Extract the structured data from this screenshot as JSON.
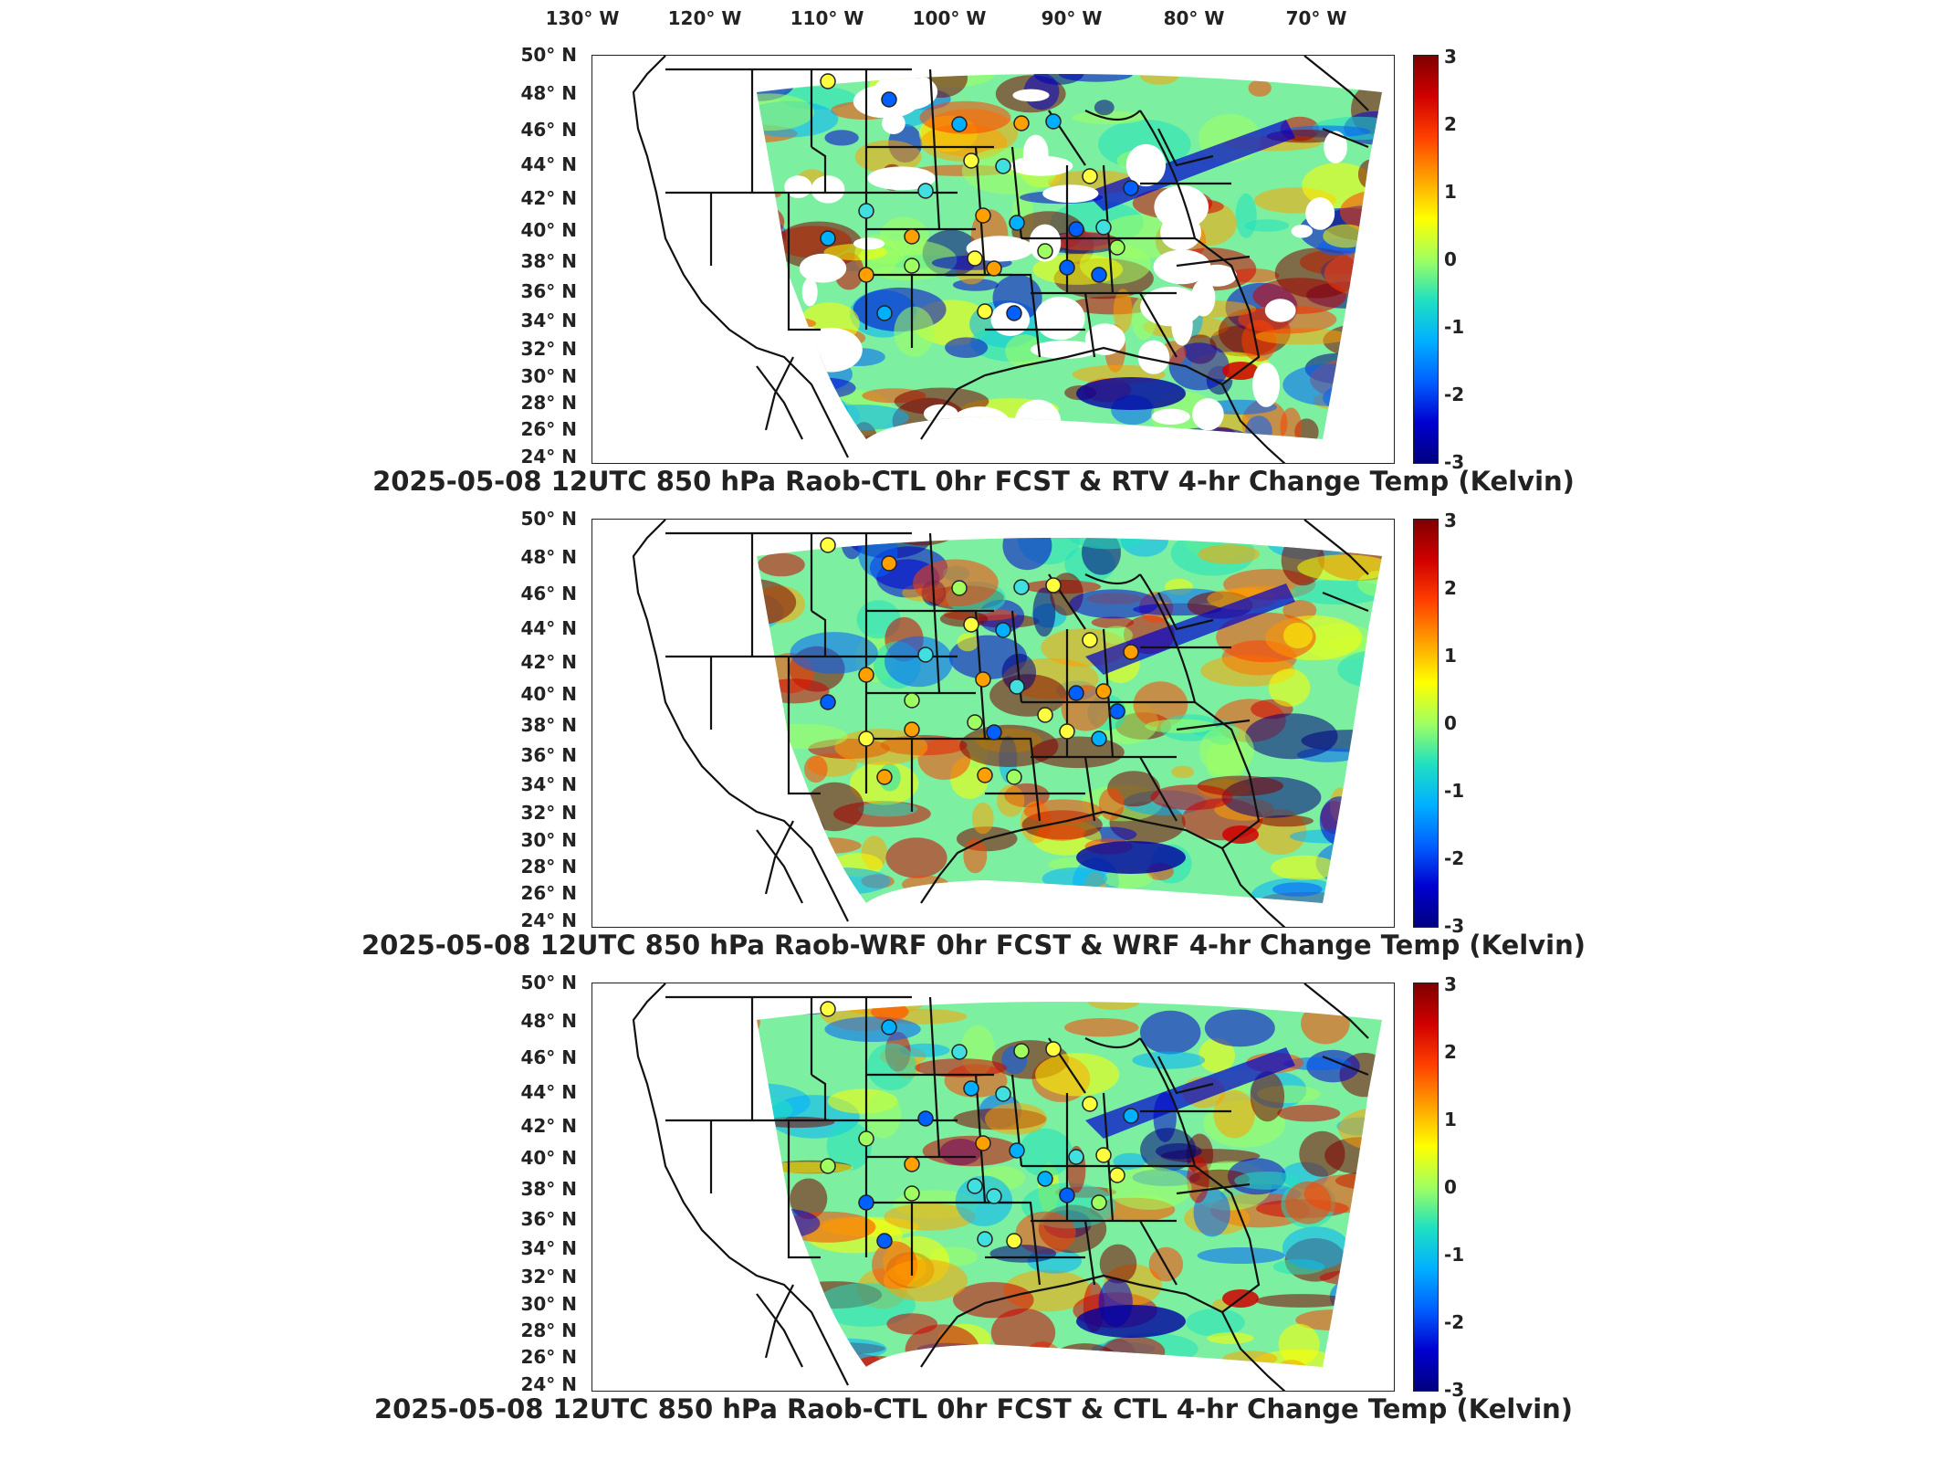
{
  "lon_axis": {
    "labels": [
      "130° W",
      "120° W",
      "110° W",
      "100° W",
      "90° W",
      "80° W",
      "70° W"
    ]
  },
  "lat_axis": {
    "labels": [
      "50° N",
      "48° N",
      "46° N",
      "44° N",
      "42° N",
      "40° N",
      "38° N",
      "36° N",
      "34° N",
      "32° N",
      "30° N",
      "28° N",
      "26° N",
      "24° N"
    ]
  },
  "colorbar": {
    "ticks": [
      "3",
      "2",
      "1",
      "0",
      "-1",
      "-2",
      "-3"
    ],
    "min": -3,
    "max": 3,
    "colors": [
      "#000080",
      "#0000d0",
      "#0060ff",
      "#00b0ff",
      "#20e0c0",
      "#a0ff60",
      "#ffff00",
      "#ffa000",
      "#ff4000",
      "#d00000",
      "#800000"
    ]
  },
  "panels": [
    {
      "title": "2025-05-08 12UTC 850 hPa Raob-CTL 0hr FCST & RTV 4-hr Change Temp (Kelvin)",
      "fill": "sparse"
    },
    {
      "title": "2025-05-08 12UTC 850 hPa Raob-WRF 0hr FCST & WRF 4-hr Change Temp (Kelvin)",
      "fill": "full"
    },
    {
      "title": "2025-05-08 12UTC 850 hPa Raob-CTL 0hr FCST & CTL 4-hr Change Temp (Kelvin)",
      "fill": "full"
    }
  ],
  "raob_station_colors": [
    "#40e0e0",
    "#a0ff60",
    "#ffff40",
    "#00b0ff",
    "#ffa000",
    "#0060ff"
  ]
}
